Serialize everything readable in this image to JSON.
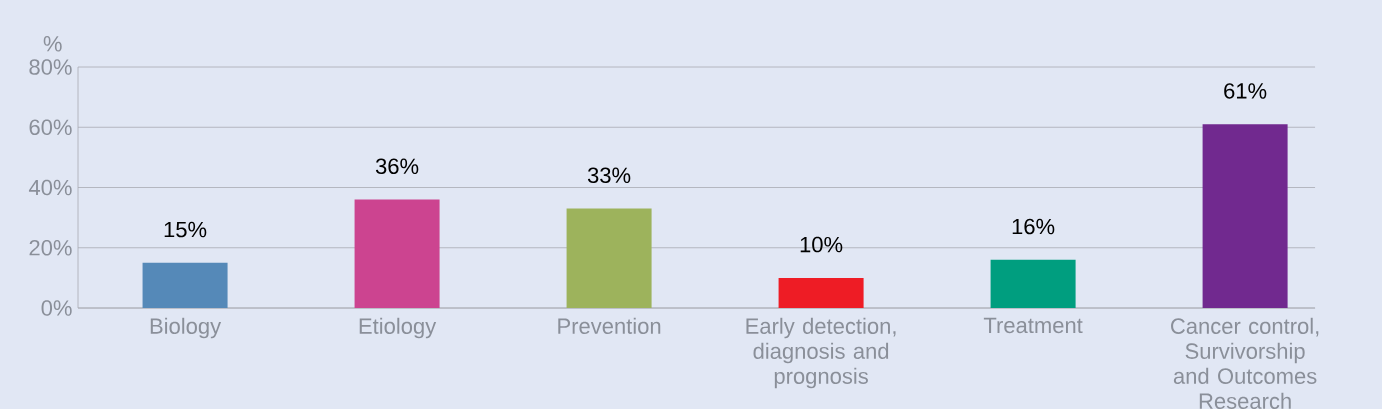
{
  "chart_data": {
    "type": "bar",
    "ylabel": "%",
    "categories": [
      "Biology",
      "Etiology",
      "Prevention",
      "Early detection, diagnosis and prognosis",
      "Treatment",
      "Cancer control, Survivorship and Outcomes Research"
    ],
    "values": [
      15,
      36,
      33,
      10,
      16,
      61
    ],
    "value_labels": [
      "15%",
      "36%",
      "33%",
      "10%",
      "16%",
      "61%"
    ],
    "colors": [
      "#5589b8",
      "#cc4490",
      "#9db35c",
      "#ee1c25",
      "#009e7f",
      "#71298f"
    ],
    "ylim": [
      0,
      80
    ],
    "yticks": [
      {
        "value": 0,
        "label": "0%"
      },
      {
        "value": 20,
        "label": "20%"
      },
      {
        "value": 40,
        "label": "40%"
      },
      {
        "value": 60,
        "label": "60%"
      },
      {
        "value": 80,
        "label": "80%"
      }
    ],
    "grid": "y"
  }
}
